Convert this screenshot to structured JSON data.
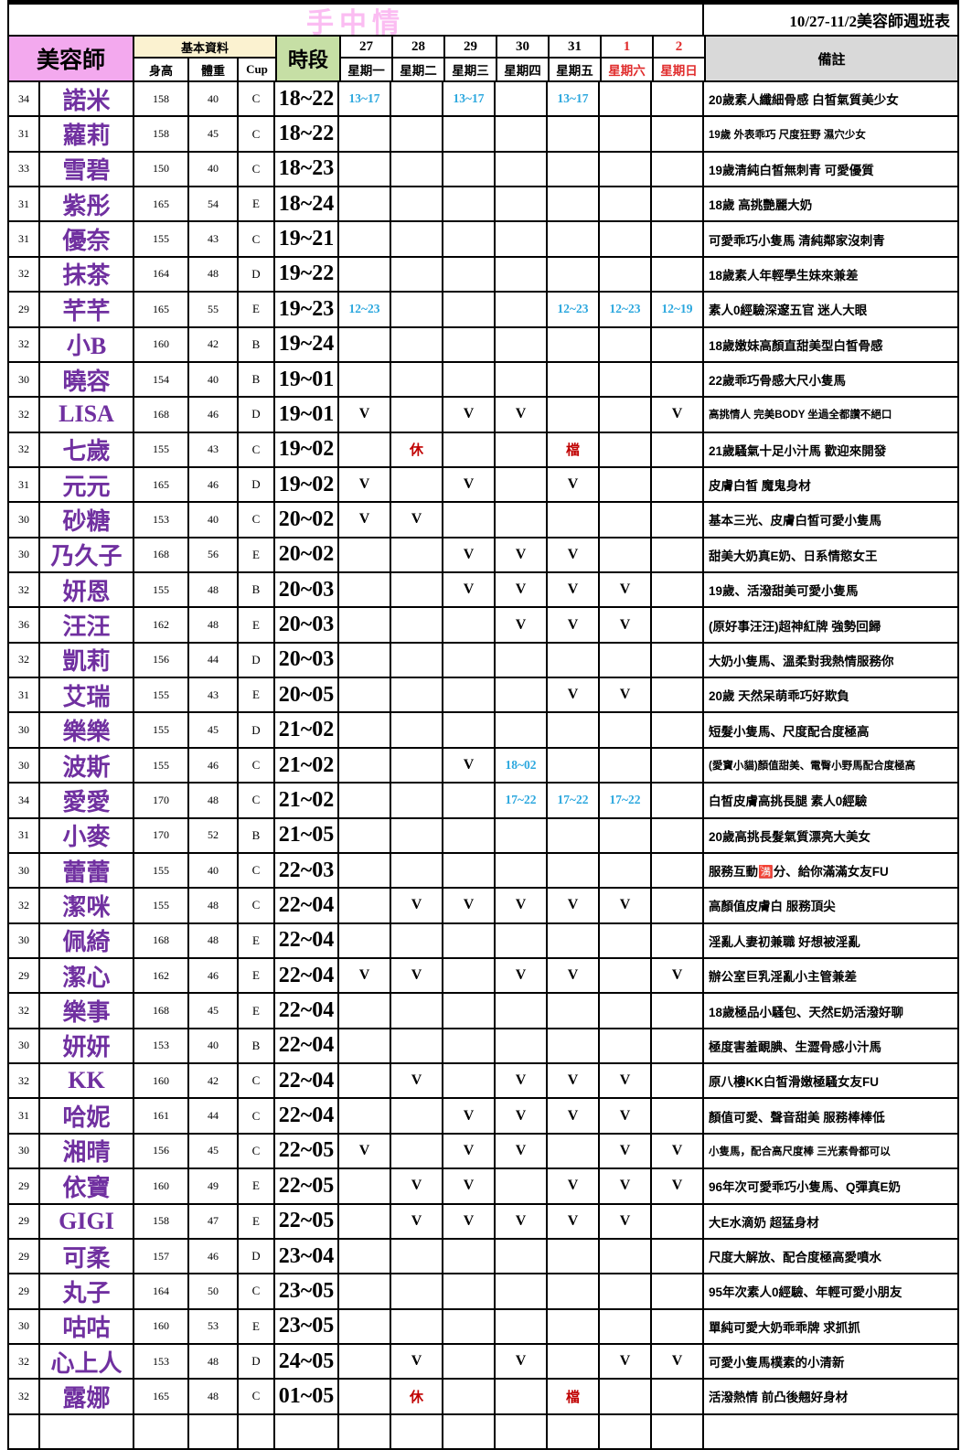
{
  "title": {
    "main": "手中情",
    "right": "10/27-11/2美容師週班表"
  },
  "header": {
    "beautician": "美容師",
    "basic_info": "基本資料",
    "height": "身高",
    "weight": "體重",
    "cup": "Cup",
    "time_slot": "時段",
    "remarks": "備註",
    "days": [
      {
        "date": "27",
        "weekday": "星期一",
        "red": false
      },
      {
        "date": "28",
        "weekday": "星期二",
        "red": false
      },
      {
        "date": "29",
        "weekday": "星期三",
        "red": false
      },
      {
        "date": "30",
        "weekday": "星期四",
        "red": false
      },
      {
        "date": "31",
        "weekday": "星期五",
        "red": false
      },
      {
        "date": "1",
        "weekday": "星期六",
        "red": true
      },
      {
        "date": "2",
        "weekday": "星期日",
        "red": true
      }
    ]
  },
  "colors": {
    "header_pink": "#F3A9EE",
    "title_pink": "#FBBDF2",
    "basic_cream": "#FBF2D0",
    "slot_green": "#C6DFA5",
    "remark_gray": "#D9D9D9",
    "name_purple": "#7030A0",
    "time_cyan": "#2BA7DE",
    "weekend_red": "#E02C2C",
    "off_red": "#C00000"
  },
  "rows": [
    {
      "age": "34",
      "name": "諾米",
      "height": "158",
      "weight": "40",
      "cup": "C",
      "slot": "18~22",
      "days": [
        "13~17",
        "",
        "13~17",
        "",
        "13~17",
        "",
        ""
      ],
      "remark": "20歲素人纖細骨感 白皙氣質美少女"
    },
    {
      "age": "31",
      "name": "蘿莉",
      "height": "158",
      "weight": "45",
      "cup": "C",
      "slot": "18~22",
      "days": [
        "",
        "",
        "",
        "",
        "",
        "",
        ""
      ],
      "remark": "19歲 外表乖巧 尺度狂野 濕穴少女"
    },
    {
      "age": "33",
      "name": "雪碧",
      "height": "150",
      "weight": "40",
      "cup": "C",
      "slot": "18~23",
      "days": [
        "",
        "",
        "",
        "",
        "",
        "",
        ""
      ],
      "remark": "19歲清純白皙無刺青 可愛優質"
    },
    {
      "age": "31",
      "name": "紫彤",
      "height": "165",
      "weight": "54",
      "cup": "E",
      "slot": "18~24",
      "days": [
        "",
        "",
        "",
        "",
        "",
        "",
        ""
      ],
      "remark": "18歲 高挑艷麗大奶"
    },
    {
      "age": "31",
      "name": "優奈",
      "height": "155",
      "weight": "43",
      "cup": "C",
      "slot": "19~21",
      "days": [
        "",
        "",
        "",
        "",
        "",
        "",
        ""
      ],
      "remark": "可愛乖巧小隻馬 清純鄰家沒刺青"
    },
    {
      "age": "32",
      "name": "抹茶",
      "height": "164",
      "weight": "48",
      "cup": "D",
      "slot": "19~22",
      "days": [
        "",
        "",
        "",
        "",
        "",
        "",
        ""
      ],
      "remark": "18歲素人年輕學生妹來兼差"
    },
    {
      "age": "29",
      "name": "芊芊",
      "height": "165",
      "weight": "55",
      "cup": "E",
      "slot": "19~23",
      "days": [
        "12~23",
        "",
        "",
        "",
        "12~23",
        "12~23",
        "12~19"
      ],
      "remark": "素人0經驗深邃五官 迷人大眼"
    },
    {
      "age": "32",
      "name": "小B",
      "height": "160",
      "weight": "42",
      "cup": "B",
      "slot": "19~24",
      "days": [
        "",
        "",
        "",
        "",
        "",
        "",
        ""
      ],
      "remark": "18歲嫩妹高顏直甜美型白皙骨感"
    },
    {
      "age": "30",
      "name": "曉容",
      "height": "154",
      "weight": "40",
      "cup": "B",
      "slot": "19~01",
      "days": [
        "",
        "",
        "",
        "",
        "",
        "",
        ""
      ],
      "remark": "22歲乖巧骨感大尺小隻馬"
    },
    {
      "age": "32",
      "name": "LISA",
      "height": "168",
      "weight": "46",
      "cup": "D",
      "slot": "19~01",
      "days": [
        "V",
        "",
        "V",
        "V",
        "",
        "",
        "V"
      ],
      "remark": "高挑情人 完美BODY 坐過全都讚不絕口"
    },
    {
      "age": "32",
      "name": "七歲",
      "height": "155",
      "weight": "43",
      "cup": "C",
      "slot": "19~02",
      "days": [
        "",
        "休",
        "",
        "",
        "檔",
        "",
        ""
      ],
      "remark": "21歲騷氣十足小汁馬 歡迎來開發"
    },
    {
      "age": "31",
      "name": "元元",
      "height": "165",
      "weight": "46",
      "cup": "D",
      "slot": "19~02",
      "days": [
        "V",
        "",
        "V",
        "",
        "V",
        "",
        ""
      ],
      "remark": "皮膚白皙 魔鬼身材"
    },
    {
      "age": "30",
      "name": "砂糖",
      "height": "153",
      "weight": "40",
      "cup": "C",
      "slot": "20~02",
      "days": [
        "V",
        "V",
        "",
        "",
        "",
        "",
        ""
      ],
      "remark": "基本三光、皮膚白皙可愛小隻馬"
    },
    {
      "age": "30",
      "name": "乃久子",
      "height": "168",
      "weight": "56",
      "cup": "E",
      "slot": "20~02",
      "days": [
        "",
        "",
        "V",
        "V",
        "V",
        "",
        ""
      ],
      "remark": "甜美大奶真E奶、日系情慾女王"
    },
    {
      "age": "32",
      "name": "妍恩",
      "height": "155",
      "weight": "48",
      "cup": "B",
      "slot": "20~03",
      "days": [
        "",
        "",
        "V",
        "V",
        "V",
        "V",
        ""
      ],
      "remark": "19歲、活潑甜美可愛小隻馬"
    },
    {
      "age": "36",
      "name": "汪汪",
      "height": "162",
      "weight": "48",
      "cup": "E",
      "slot": "20~03",
      "days": [
        "",
        "",
        "",
        "V",
        "V",
        "V",
        ""
      ],
      "remark": "(原好事汪汪)超神紅牌 強勢回歸"
    },
    {
      "age": "32",
      "name": "凱莉",
      "height": "156",
      "weight": "44",
      "cup": "D",
      "slot": "20~03",
      "days": [
        "",
        "",
        "",
        "",
        "",
        "",
        ""
      ],
      "remark": "大奶小隻馬、溫柔對我熱情服務你"
    },
    {
      "age": "31",
      "name": "艾瑞",
      "height": "155",
      "weight": "43",
      "cup": "E",
      "slot": "20~05",
      "days": [
        "",
        "",
        "",
        "",
        "V",
        "V",
        ""
      ],
      "remark": "20歲 天然呆萌乖巧好欺負"
    },
    {
      "age": "30",
      "name": "樂樂",
      "height": "155",
      "weight": "45",
      "cup": "D",
      "slot": "21~02",
      "days": [
        "",
        "",
        "",
        "",
        "",
        "",
        ""
      ],
      "remark": "短髮小隻馬、尺度配合度極高"
    },
    {
      "age": "30",
      "name": "波斯",
      "height": "155",
      "weight": "46",
      "cup": "C",
      "slot": "21~02",
      "days": [
        "",
        "",
        "V",
        "18~02",
        "",
        "",
        ""
      ],
      "remark": "(愛寶小貓)顏值甜美、電臀小野馬配合度極高"
    },
    {
      "age": "34",
      "name": "愛愛",
      "height": "170",
      "weight": "48",
      "cup": "C",
      "slot": "21~02",
      "days": [
        "",
        "",
        "",
        "17~22",
        "17~22",
        "17~22",
        ""
      ],
      "remark": "白皙皮膚高挑長腿 素人0經驗"
    },
    {
      "age": "31",
      "name": "小麥",
      "height": "170",
      "weight": "52",
      "cup": "B",
      "slot": "21~05",
      "days": [
        "",
        "",
        "",
        "",
        "",
        "",
        ""
      ],
      "remark": "20歲高挑長髮氣質漂亮大美女"
    },
    {
      "age": "30",
      "name": "蕾蕾",
      "height": "155",
      "weight": "40",
      "cup": "C",
      "slot": "22~03",
      "days": [
        "",
        "",
        "",
        "",
        "",
        "",
        ""
      ],
      "remark": "服務互動🈵分、給你滿滿女友FU"
    },
    {
      "age": "32",
      "name": "潔咪",
      "height": "155",
      "weight": "48",
      "cup": "C",
      "slot": "22~04",
      "days": [
        "",
        "V",
        "V",
        "V",
        "V",
        "V",
        ""
      ],
      "remark": "高顏值皮膚白 服務頂尖"
    },
    {
      "age": "30",
      "name": "佩綺",
      "height": "168",
      "weight": "48",
      "cup": "E",
      "slot": "22~04",
      "days": [
        "",
        "",
        "",
        "",
        "",
        "",
        ""
      ],
      "remark": "淫亂人妻初兼職 好想被淫亂"
    },
    {
      "age": "29",
      "name": "潔心",
      "height": "162",
      "weight": "46",
      "cup": "E",
      "slot": "22~04",
      "days": [
        "V",
        "V",
        "",
        "V",
        "V",
        "",
        "V"
      ],
      "remark": "辦公室巨乳淫亂小主管兼差"
    },
    {
      "age": "32",
      "name": "樂事",
      "height": "168",
      "weight": "45",
      "cup": "E",
      "slot": "22~04",
      "days": [
        "",
        "",
        "",
        "",
        "",
        "",
        ""
      ],
      "remark": "18歲極品小騷包、天然E奶活潑好聊"
    },
    {
      "age": "30",
      "name": "妍妍",
      "height": "153",
      "weight": "40",
      "cup": "B",
      "slot": "22~04",
      "days": [
        "",
        "",
        "",
        "",
        "",
        "",
        ""
      ],
      "remark": "極度害羞靦腆、生澀骨感小汁馬"
    },
    {
      "age": "32",
      "name": "KK",
      "height": "160",
      "weight": "42",
      "cup": "C",
      "slot": "22~04",
      "days": [
        "",
        "V",
        "",
        "V",
        "V",
        "V",
        ""
      ],
      "remark": "原八樓KK白皙滑嫩極騷女友FU"
    },
    {
      "age": "31",
      "name": "哈妮",
      "height": "161",
      "weight": "44",
      "cup": "C",
      "slot": "22~04",
      "days": [
        "",
        "",
        "V",
        "V",
        "V",
        "V",
        ""
      ],
      "remark": "顏值可愛、聲音甜美 服務棒棒低"
    },
    {
      "age": "30",
      "name": "湘晴",
      "height": "156",
      "weight": "45",
      "cup": "C",
      "slot": "22~05",
      "days": [
        "V",
        "",
        "V",
        "V",
        "",
        "V",
        "V"
      ],
      "remark": "小隻馬，配合高尺度棒 三光素骨都可以"
    },
    {
      "age": "29",
      "name": "依寶",
      "height": "160",
      "weight": "49",
      "cup": "E",
      "slot": "22~05",
      "days": [
        "",
        "V",
        "V",
        "",
        "V",
        "V",
        "V"
      ],
      "remark": "96年次可愛乖巧小隻馬、Q彈真E奶"
    },
    {
      "age": "29",
      "name": "GIGI",
      "height": "158",
      "weight": "47",
      "cup": "E",
      "slot": "22~05",
      "days": [
        "",
        "V",
        "V",
        "V",
        "V",
        "V",
        ""
      ],
      "remark": "大E水滴奶 超猛身材"
    },
    {
      "age": "29",
      "name": "可柔",
      "height": "157",
      "weight": "46",
      "cup": "D",
      "slot": "23~04",
      "days": [
        "",
        "",
        "",
        "",
        "",
        "",
        ""
      ],
      "remark": "尺度大解放、配合度極高愛噴水"
    },
    {
      "age": "29",
      "name": "丸子",
      "height": "164",
      "weight": "50",
      "cup": "C",
      "slot": "23~05",
      "days": [
        "",
        "",
        "",
        "",
        "",
        "",
        ""
      ],
      "remark": "95年次素人0經驗、年輕可愛小朋友"
    },
    {
      "age": "30",
      "name": "咕咕",
      "height": "160",
      "weight": "53",
      "cup": "E",
      "slot": "23~05",
      "days": [
        "",
        "",
        "",
        "",
        "",
        "",
        ""
      ],
      "remark": "單純可愛大奶乖乖牌 求抓抓"
    },
    {
      "age": "32",
      "name": "心上人",
      "height": "153",
      "weight": "48",
      "cup": "D",
      "slot": "24~05",
      "days": [
        "",
        "V",
        "",
        "V",
        "",
        "V",
        "V"
      ],
      "remark": "可愛小隻馬樸素的小清新"
    },
    {
      "age": "32",
      "name": "露娜",
      "height": "165",
      "weight": "48",
      "cup": "C",
      "slot": "01~05",
      "days": [
        "",
        "休",
        "",
        "",
        "檔",
        "",
        ""
      ],
      "remark": "活潑熱情 前凸後翹好身材"
    }
  ]
}
